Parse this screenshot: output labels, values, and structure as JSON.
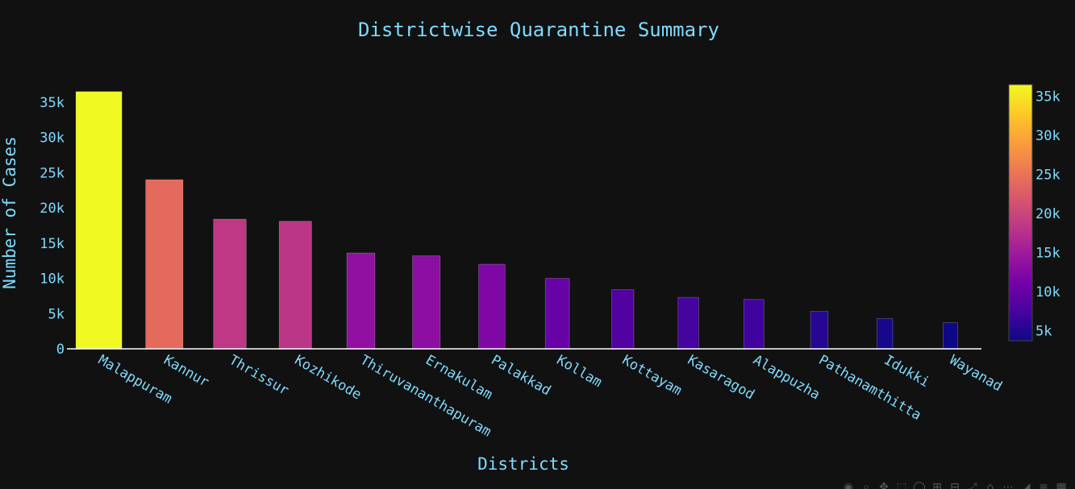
{
  "chart_data": {
    "type": "bar",
    "title": "Districtwise Quarantine Summary",
    "xlabel": "Districts",
    "ylabel": "Number of Cases",
    "categories": [
      "Malappuram",
      "Kannur",
      "Thrissur",
      "Kozhikode",
      "Thiruvananthapuram",
      "Ernakulam",
      "Palakkad",
      "Kollam",
      "Kottayam",
      "Kasaragod",
      "Alappuzha",
      "Pathanamthitta",
      "Idukki",
      "Wayanad"
    ],
    "values": [
      36500,
      24000,
      18400,
      18100,
      13600,
      13200,
      12000,
      10000,
      8400,
      7300,
      7000,
      5300,
      4300,
      3700
    ],
    "ylim": [
      0,
      37500
    ],
    "yticks": [
      0,
      5000,
      10000,
      15000,
      20000,
      25000,
      30000,
      35000
    ],
    "ytick_labels": [
      "0",
      "5k",
      "10k",
      "15k",
      "20k",
      "25k",
      "30k",
      "35k"
    ],
    "colorscale": "plasma",
    "colorbar": {
      "range": [
        3700,
        36500
      ],
      "ticks": [
        5000,
        10000,
        15000,
        20000,
        25000,
        30000,
        35000
      ],
      "tick_labels": [
        "5k",
        "10k",
        "15k",
        "20k",
        "25k",
        "30k",
        "35k"
      ]
    },
    "grid": false,
    "colors": {
      "background": "#111111",
      "text": "#7fdbff",
      "axis_line": "#ffffff"
    }
  },
  "modebar": {
    "icons": [
      "camera-icon",
      "zoom-icon",
      "pan-icon",
      "box-select-icon",
      "lasso-icon",
      "zoom-in-icon",
      "zoom-out-icon",
      "autoscale-icon",
      "reset-axes-icon",
      "spike-lines-icon",
      "hover-closest-icon",
      "hover-compare-icon",
      "plotly-logo-icon"
    ],
    "glyphs": [
      "◉",
      "⌕",
      "✥",
      "⬚",
      "◯",
      "⊞",
      "⊟",
      "⤢",
      "⌂",
      "⋯",
      "◢",
      "≡",
      "▦"
    ]
  }
}
